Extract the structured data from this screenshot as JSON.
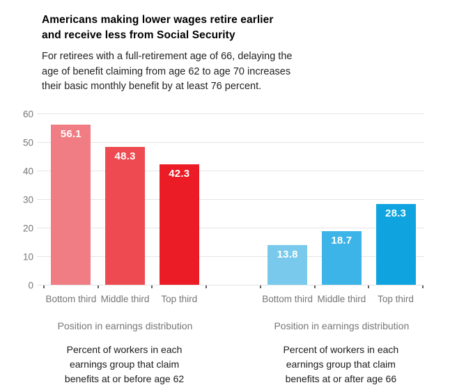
{
  "header": {
    "title_lines": [
      "Americans making lower wages retire earlier",
      "and receive less from Social Security"
    ],
    "subtitle_lines": [
      "For retirees with a full-retirement age of 66, delaying the",
      "age of benefit claiming from age 62 to age 70 increases",
      "their basic monthly benefit by at least 76 percent."
    ]
  },
  "chart_data": {
    "type": "bar",
    "title": "Americans making lower wages retire earlier and receive less from Social Security",
    "subtitle": "For retirees with a full-retirement age of 66, delaying the age of benefit claiming from age 62 to age 70 increases their basic monthly benefit by at least 76 percent.",
    "ylim": [
      0,
      60
    ],
    "yticks": [
      0,
      10,
      20,
      30,
      40,
      50,
      60
    ],
    "grid": "horizontal",
    "legend": "none",
    "value_label_color": "#ffffff",
    "groups": [
      {
        "name": "claim-before-62",
        "xlabel": "Position in earnings distribution",
        "caption_lines": [
          "Percent of workers in each",
          "earnings group that claim",
          "benefits at or before age 62"
        ],
        "categories": [
          "Bottom third",
          "Middle third",
          "Top third"
        ],
        "values": [
          56.1,
          48.3,
          42.3
        ],
        "bar_colors": [
          "#f07d83",
          "#ee4a52",
          "#ec1c26"
        ]
      },
      {
        "name": "claim-after-66",
        "xlabel": "Position in earnings distribution",
        "caption_lines": [
          "Percent of workers in each",
          "earnings group that claim",
          "benefits at or after age 66"
        ],
        "categories": [
          "Bottom third",
          "Middle third",
          "Top third"
        ],
        "values": [
          13.8,
          18.7,
          28.3
        ],
        "bar_colors": [
          "#79c9ec",
          "#3cb4e7",
          "#0fa4e0"
        ]
      }
    ]
  }
}
